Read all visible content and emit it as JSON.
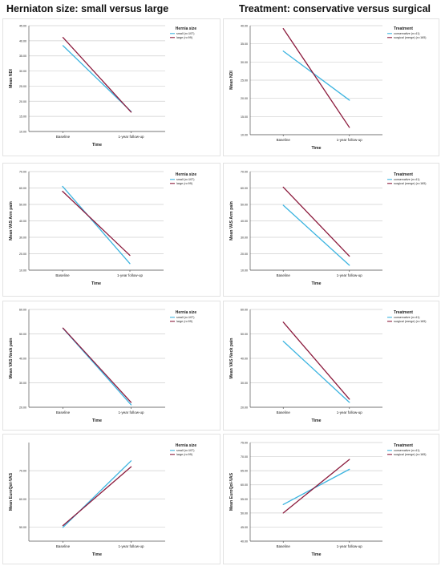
{
  "titles": {
    "left": "Herniaton size: small versus large",
    "right": "Treatment: conservative versus surgical"
  },
  "colors": {
    "series_a": "#3cb4e0",
    "series_b": "#8b1a3c",
    "grid": "#cfcfcf",
    "axis": "#555555"
  },
  "chart_data": [
    {
      "type": "line",
      "ylabel": "Mean NDI",
      "xlabel": "Time",
      "categories": [
        "Baseline",
        "1-year follow-up"
      ],
      "ylim": [
        10,
        45
      ],
      "yticks": [
        "10.00",
        "15.00",
        "20.00",
        "25.00",
        "30.00",
        "35.00",
        "40.00",
        "45.00"
      ],
      "legend_title": "Hernia size",
      "series": [
        {
          "name": "small (n=107)",
          "values": [
            38.4,
            16.6
          ]
        },
        {
          "name": "large (n=99)",
          "values": [
            41.1,
            16.4
          ]
        }
      ]
    },
    {
      "type": "line",
      "ylabel": "Mean NDI",
      "xlabel": "Time",
      "categories": [
        "Baseline",
        "1-year follow-up"
      ],
      "ylim": [
        10,
        40
      ],
      "yticks": [
        "10.00",
        "15.00",
        "20.00",
        "25.00",
        "30.00",
        "35.00",
        "40.00"
      ],
      "legend_title": "Treatment",
      "series": [
        {
          "name": "conservative (n=41)",
          "values": [
            33.0,
            19.5
          ]
        },
        {
          "name": "surgical (merge) (n=165)",
          "values": [
            39.2,
            12.0
          ]
        }
      ]
    },
    {
      "type": "line",
      "ylabel": "Mean VAS Arm pain",
      "xlabel": "Time",
      "categories": [
        "Baseline",
        "1-year follow-up"
      ],
      "ylim": [
        10,
        70
      ],
      "yticks": [
        "10.00",
        "20.00",
        "30.00",
        "40.00",
        "50.00",
        "60.00",
        "70.00"
      ],
      "legend_title": "Hernia size",
      "series": [
        {
          "name": "small (n=107)",
          "values": [
            61.0,
            14.0
          ]
        },
        {
          "name": "large (n=99)",
          "values": [
            58.0,
            19.0
          ]
        }
      ]
    },
    {
      "type": "line",
      "ylabel": "Mean VAS Arm pain",
      "xlabel": "Time",
      "categories": [
        "Baseline",
        "1-year follow-up"
      ],
      "ylim": [
        10,
        70
      ],
      "yticks": [
        "10.00",
        "20.00",
        "30.00",
        "40.00",
        "50.00",
        "60.00",
        "70.00"
      ],
      "legend_title": "Treatment",
      "series": [
        {
          "name": "conservative (n=41)",
          "values": [
            49.5,
            13.0
          ]
        },
        {
          "name": "surgical (merge) (n=165)",
          "values": [
            60.5,
            18.5
          ]
        }
      ]
    },
    {
      "type": "line",
      "ylabel": "Mean VAS Neck pain",
      "xlabel": "Time",
      "categories": [
        "Baseline",
        "1-year follow-up"
      ],
      "ylim": [
        20,
        60
      ],
      "yticks": [
        "20.00",
        "30.00",
        "40.00",
        "50.00",
        "60.00"
      ],
      "legend_title": "Hernia size",
      "series": [
        {
          "name": "small (n=107)",
          "values": [
            52.3,
            21.0
          ]
        },
        {
          "name": "large (n=99)",
          "values": [
            52.4,
            22.0
          ]
        }
      ]
    },
    {
      "type": "line",
      "ylabel": "Mean VAS Neck pain",
      "xlabel": "Time",
      "categories": [
        "Baseline",
        "1-year follow-up"
      ],
      "ylim": [
        20,
        60
      ],
      "yticks": [
        "20.00",
        "30.00",
        "40.00",
        "50.00",
        "60.00"
      ],
      "legend_title": "Treatment",
      "series": [
        {
          "name": "conservative (n=41)",
          "values": [
            47.0,
            22.0
          ]
        },
        {
          "name": "surgical (merge) (n=165)",
          "values": [
            54.8,
            23.3
          ]
        }
      ]
    },
    {
      "type": "line",
      "ylabel": "Mean EuroQol-VAS",
      "xlabel": "Time",
      "categories": [
        "Baseline",
        "1-year follow-up"
      ],
      "ylim": [
        45,
        80
      ],
      "yticks": [
        "50.00",
        "60.00",
        "70.00"
      ],
      "legend_title": "Hernia size",
      "series": [
        {
          "name": "small (n=107)",
          "values": [
            49.9,
            73.5
          ]
        },
        {
          "name": "large (n=99)",
          "values": [
            50.5,
            71.4
          ]
        }
      ]
    },
    {
      "type": "line",
      "ylabel": "Mean EuroQol-VAS",
      "xlabel": "Time",
      "categories": [
        "Baseline",
        "1-year follow-up"
      ],
      "ylim": [
        40,
        75
      ],
      "yticks": [
        "40.00",
        "45.00",
        "50.00",
        "55.00",
        "60.00",
        "65.00",
        "70.00",
        "75.00"
      ],
      "legend_title": "Treatment",
      "series": [
        {
          "name": "conservative (n=41)",
          "values": [
            53.0,
            65.5
          ]
        },
        {
          "name": "surgical (merge) (n=165)",
          "values": [
            50.0,
            69.0
          ]
        }
      ]
    }
  ]
}
